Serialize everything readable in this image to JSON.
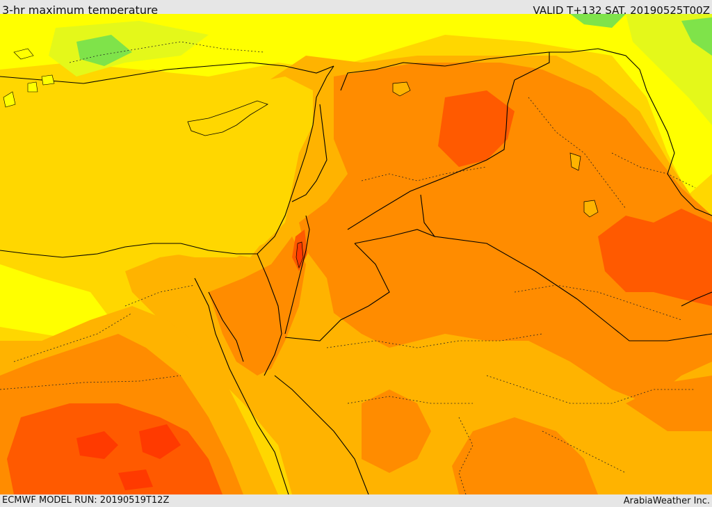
{
  "header": {
    "title": "3-hr maximum temperature",
    "valid_time": "VALID T+132 SAT. 20190525T00Z"
  },
  "footer": {
    "model_run": "ECMWF MODEL RUN: 20190519T12Z",
    "credit": "ArabiaWeather Inc."
  },
  "map": {
    "field": "3-hr maximum temperature",
    "palette": {
      "coolest": "#7fe34a",
      "cool": "#e4f81a",
      "mild": "#ffff00",
      "warm": "#ffd700",
      "warmer": "#ffb300",
      "hot": "#ff8c00",
      "very_hot": "#ff5a00",
      "hottest": "#ff3a00",
      "border_color": "#000000"
    }
  }
}
